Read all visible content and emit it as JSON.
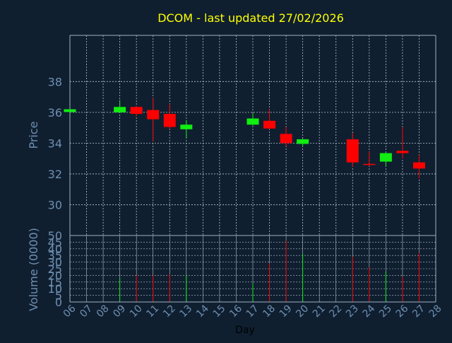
{
  "chart_data": [
    {
      "type": "candlestick",
      "title": "DCOM - last updated 27/02/2026",
      "ylabel": "Price",
      "ylim": [
        28.0,
        41.0
      ],
      "yticks": [
        "30",
        "32",
        "34",
        "36",
        "38"
      ],
      "grid": true,
      "colors": {
        "up": "#11ee11",
        "down": "#ff0000",
        "title": "#ffff00",
        "axis_text": "#6f8fb0",
        "grid": "#b8c4d0",
        "background": "#0f1f30"
      },
      "candles": [
        {
          "day": "06",
          "open": 36.02,
          "high": 36.2,
          "low": 35.95,
          "close": 36.2
        },
        {
          "day": "09",
          "open": 36.0,
          "high": 36.8,
          "low": 35.95,
          "close": 36.35
        },
        {
          "day": "10",
          "open": 36.35,
          "high": 36.4,
          "low": 35.75,
          "close": 35.9
        },
        {
          "day": "11",
          "open": 36.15,
          "high": 36.95,
          "low": 34.1,
          "close": 35.55
        },
        {
          "day": "12",
          "open": 35.9,
          "high": 36.55,
          "low": 34.9,
          "close": 35.05
        },
        {
          "day": "13",
          "open": 34.9,
          "high": 35.45,
          "low": 34.35,
          "close": 35.2
        },
        {
          "day": "17",
          "open": 35.2,
          "high": 35.95,
          "low": 35.15,
          "close": 35.6
        },
        {
          "day": "18",
          "open": 35.45,
          "high": 36.2,
          "low": 34.9,
          "close": 34.95
        },
        {
          "day": "19",
          "open": 34.6,
          "high": 35.05,
          "low": 33.8,
          "close": 34.0
        },
        {
          "day": "20",
          "open": 33.95,
          "high": 34.3,
          "low": 33.8,
          "close": 34.25
        },
        {
          "day": "23",
          "open": 34.25,
          "high": 34.65,
          "low": 32.45,
          "close": 32.75
        },
        {
          "day": "24",
          "open": 32.65,
          "high": 33.45,
          "low": 32.5,
          "close": 32.6
        },
        {
          "day": "25",
          "open": 32.8,
          "high": 33.4,
          "low": 32.5,
          "close": 33.35
        },
        {
          "day": "26",
          "open": 33.5,
          "high": 35.05,
          "low": 33.0,
          "close": 33.35
        },
        {
          "day": "27",
          "open": 32.75,
          "high": 33.25,
          "low": 31.7,
          "close": 32.35
        }
      ]
    },
    {
      "type": "bar",
      "ylabel": "Volume (0000)",
      "xlabel": "Day",
      "ylim": [
        0,
        50
      ],
      "yticks": [
        "0",
        "5",
        "10",
        "15",
        "20",
        "25",
        "30",
        "35",
        "40",
        "45",
        "50"
      ],
      "categories": [
        "06",
        "07",
        "08",
        "09",
        "10",
        "11",
        "12",
        "13",
        "14",
        "15",
        "16",
        "17",
        "18",
        "19",
        "20",
        "21",
        "22",
        "23",
        "24",
        "25",
        "26",
        "27",
        "28"
      ],
      "values": [
        0,
        0,
        0,
        18,
        20,
        20,
        21,
        20,
        0,
        0,
        0,
        14,
        29,
        46,
        36,
        0,
        0,
        34,
        26,
        23,
        19,
        37,
        0
      ],
      "directions": [
        "up",
        "",
        "",
        "up",
        "down",
        "down",
        "down",
        "up",
        "",
        "",
        "",
        "up",
        "down",
        "down",
        "up",
        "",
        "",
        "down",
        "down",
        "up",
        "down",
        "down",
        ""
      ]
    }
  ]
}
